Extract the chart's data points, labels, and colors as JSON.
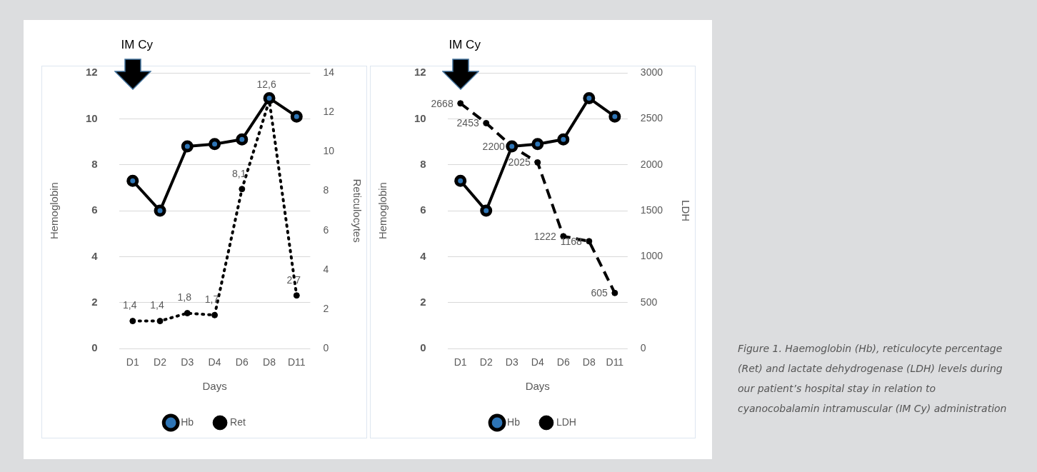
{
  "chart_data": [
    {
      "type": "line",
      "categories": [
        "D1",
        "D2",
        "D3",
        "D4",
        "D6",
        "D8",
        "D11"
      ],
      "xlabel": "Days",
      "ylabel": "Hemoglobin",
      "y2label": "Reticulocytes",
      "ylim": [
        0,
        12
      ],
      "yticks": [
        0,
        2,
        4,
        6,
        8,
        10,
        12
      ],
      "y2lim": [
        0,
        14
      ],
      "y2ticks": [
        0,
        2,
        4,
        6,
        8,
        10,
        12,
        14
      ],
      "grid": "y",
      "legend": "bottom",
      "marker": "circle",
      "annotations": [
        "IM Cy"
      ],
      "series": [
        {
          "name": "Hb",
          "color": "#000000",
          "line_style": "solid",
          "values": [
            7.3,
            6.0,
            8.8,
            8.9,
            9.1,
            10.9,
            10.1
          ]
        },
        {
          "name": "Ret",
          "color": "#000000",
          "line_style": "dotted",
          "axis": "y2",
          "values": [
            1.4,
            1.4,
            1.8,
            1.7,
            8.1,
            12.6,
            2.7
          ],
          "value_labels": [
            "1,4",
            "1,4",
            "1,8",
            "1,7",
            "8,1",
            "12,6",
            "2,7"
          ]
        }
      ]
    },
    {
      "type": "line",
      "categories": [
        "D1",
        "D2",
        "D3",
        "D4",
        "D6",
        "D8",
        "D11"
      ],
      "xlabel": "Days",
      "ylabel": "Hemoglobin",
      "y2label": "LDH",
      "ylim": [
        0,
        12
      ],
      "yticks": [
        0,
        2,
        4,
        6,
        8,
        10,
        12
      ],
      "y2lim": [
        0,
        3000
      ],
      "y2ticks": [
        0,
        500,
        1000,
        1500,
        2000,
        2500,
        3000
      ],
      "grid": "y",
      "legend": "bottom",
      "marker": "circle",
      "annotations": [
        "IM Cy"
      ],
      "series": [
        {
          "name": "Hb",
          "color": "#000000",
          "line_style": "solid",
          "values": [
            7.3,
            6.0,
            8.8,
            8.9,
            9.1,
            10.9,
            10.1
          ]
        },
        {
          "name": "LDH",
          "color": "#000000",
          "line_style": "dashed",
          "axis": "y2",
          "values": [
            2668,
            2453,
            2200,
            2025,
            1222,
            1168,
            605
          ],
          "value_labels": [
            "2668",
            "2453",
            "2200",
            "2025",
            "1222",
            "1168",
            "605"
          ]
        }
      ]
    },
    {
      "type": "other",
      "annotations": [
        "Figure 1. Haemoglobin (Hb), reticulocyte percentage (Ret) and lactate dehydrogenase (LDH) levels during our patient’s hospital stay in relation to cyanocobalamin intramuscular (IM Cy) administration"
      ]
    }
  ]
}
